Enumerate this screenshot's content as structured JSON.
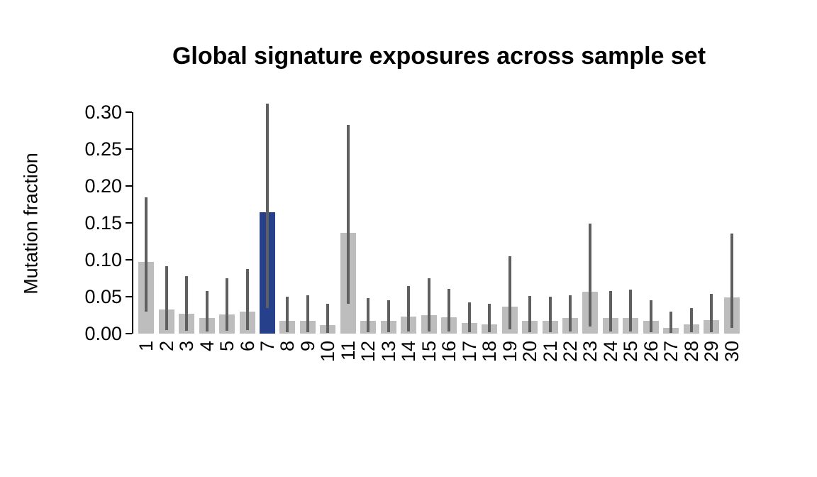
{
  "title": "Global signature exposures across sample set",
  "chart_data": {
    "type": "bar",
    "title": "Global signature exposures across sample set",
    "xlabel": "",
    "ylabel": "Mutation fraction",
    "categories": [
      "1",
      "2",
      "3",
      "4",
      "5",
      "6",
      "7",
      "8",
      "9",
      "10",
      "11",
      "12",
      "13",
      "14",
      "15",
      "16",
      "17",
      "18",
      "19",
      "20",
      "21",
      "22",
      "23",
      "24",
      "25",
      "26",
      "27",
      "28",
      "29",
      "30"
    ],
    "values": [
      0.097,
      0.033,
      0.027,
      0.021,
      0.026,
      0.03,
      0.165,
      0.017,
      0.017,
      0.012,
      0.137,
      0.017,
      0.017,
      0.023,
      0.025,
      0.022,
      0.014,
      0.013,
      0.037,
      0.017,
      0.017,
      0.021,
      0.057,
      0.021,
      0.021,
      0.017,
      0.008,
      0.013,
      0.018,
      0.049
    ],
    "error_low": [
      0.03,
      0.005,
      0.004,
      0.003,
      0.004,
      0.005,
      0.035,
      0.002,
      0.002,
      0.001,
      0.04,
      0.002,
      0.002,
      0.003,
      0.003,
      0.003,
      0.002,
      0.002,
      0.006,
      0.002,
      0.002,
      0.003,
      0.01,
      0.003,
      0.003,
      0.002,
      0.001,
      0.002,
      0.002,
      0.008
    ],
    "error_high": [
      0.185,
      0.091,
      0.078,
      0.058,
      0.075,
      0.088,
      0.312,
      0.05,
      0.052,
      0.04,
      0.283,
      0.048,
      0.045,
      0.065,
      0.075,
      0.061,
      0.042,
      0.04,
      0.105,
      0.051,
      0.05,
      0.052,
      0.149,
      0.058,
      0.06,
      0.045,
      0.03,
      0.035,
      0.054,
      0.136
    ],
    "highlighted_category": "7",
    "y_ticks": [
      {
        "label": "0.00",
        "value": 0.0
      },
      {
        "label": "0.05",
        "value": 0.05
      },
      {
        "label": "0.10",
        "value": 0.1
      },
      {
        "label": "0.15",
        "value": 0.15
      },
      {
        "label": "0.20",
        "value": 0.2
      },
      {
        "label": "0.25",
        "value": 0.25
      },
      {
        "label": "0.30",
        "value": 0.3
      }
    ],
    "ylim": [
      0,
      0.31
    ],
    "grid": false,
    "legend": "none",
    "colors": {
      "bar": "#bdbdbd",
      "highlight": "#27408b",
      "whisker": "#5f5f5f",
      "axis": "#000000"
    }
  }
}
